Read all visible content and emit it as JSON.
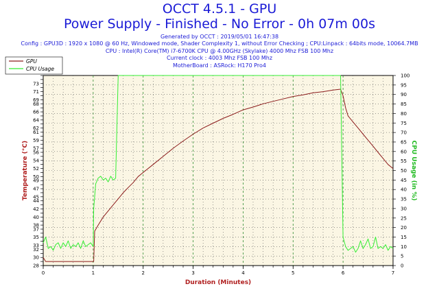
{
  "header": {
    "title": "OCCT 4.5.1 - GPU",
    "subtitle": "Power Supply - Finished - No Error - 0h 07m 00s",
    "generated": "Generated by OCCT : 2019/05/01 16:47:38",
    "config": "Config : GPU3D : 1920 x 1080 @ 60 Hz, Windowed mode, Shader Complexity 1, without Error Checking ; CPU:Linpack : 64bits mode, 10064.7MB",
    "cpu": "CPU : Intel(R) Core(TM) i7-6700K CPU @ 4.00GHz (Skylake) 4000 Mhz FSB 100 Mhz",
    "clock": "Current clock : 4003 Mhz FSB 100 Mhz",
    "motherboard": "MotherBoard : ASRock: H170 Pro4"
  },
  "colors": {
    "background": "#ffffff",
    "plot_bg": "#fbf6e4",
    "grid_major": "#2e8b2e",
    "grid_minor": "#555555",
    "gpu_line": "#8b1a1a",
    "cpu_line": "#33ee33",
    "title": "#1a1ad6"
  },
  "chart_data": {
    "type": "line",
    "xlabel": "Duration (Minutes)",
    "ylabel_left": "Temperature (°C)",
    "ylabel_right": "CPU Usage (in %)",
    "xlim": [
      0,
      7
    ],
    "ylim_left": [
      28,
      75
    ],
    "ylim_right": [
      0,
      100
    ],
    "x_ticks": [
      0,
      1,
      2,
      3,
      4,
      5,
      6,
      7
    ],
    "y_ticks_left": [
      28,
      29,
      30,
      31,
      32,
      33,
      34,
      35,
      36,
      37,
      38,
      39,
      40,
      41,
      42,
      43,
      44,
      45,
      46,
      47,
      48,
      49,
      50,
      51,
      52,
      53,
      54,
      55,
      56,
      57,
      58,
      59,
      60,
      61,
      62,
      63,
      64,
      65,
      66,
      67,
      68,
      69,
      70,
      71,
      72,
      73,
      74,
      75
    ],
    "y_tick_labels_left": [
      28,
      30,
      32,
      33,
      35,
      37,
      38,
      40,
      42,
      44,
      45,
      47,
      49,
      50,
      52,
      54,
      56,
      57,
      59,
      61,
      62,
      64,
      66,
      68,
      69,
      71,
      73
    ],
    "y_ticks_right": [
      0,
      5,
      10,
      15,
      20,
      25,
      30,
      35,
      40,
      45,
      50,
      55,
      60,
      65,
      70,
      75,
      80,
      85,
      90,
      95,
      100
    ],
    "grid": true,
    "legend_position": "top-left",
    "series": [
      {
        "name": "GPU",
        "axis": "left",
        "color": "#8b1a1a",
        "points": [
          [
            0,
            30
          ],
          [
            0.05,
            29
          ],
          [
            0.2,
            29
          ],
          [
            0.5,
            29
          ],
          [
            0.8,
            29
          ],
          [
            1.0,
            29
          ],
          [
            1.01,
            29
          ],
          [
            1.03,
            36.5
          ],
          [
            1.1,
            38
          ],
          [
            1.2,
            40
          ],
          [
            1.3,
            41.5
          ],
          [
            1.4,
            43
          ],
          [
            1.5,
            44.5
          ],
          [
            1.6,
            46
          ],
          [
            1.7,
            47.3
          ],
          [
            1.8,
            48.5
          ],
          [
            1.9,
            50
          ],
          [
            2.0,
            51
          ],
          [
            2.2,
            53
          ],
          [
            2.4,
            55
          ],
          [
            2.6,
            57
          ],
          [
            2.8,
            58.8
          ],
          [
            3.0,
            60.5
          ],
          [
            3.2,
            62
          ],
          [
            3.4,
            63.2
          ],
          [
            3.6,
            64.4
          ],
          [
            3.8,
            65.4
          ],
          [
            4.0,
            66.5
          ],
          [
            4.2,
            67.2
          ],
          [
            4.4,
            68
          ],
          [
            4.6,
            68.6
          ],
          [
            4.8,
            69.2
          ],
          [
            5.0,
            69.8
          ],
          [
            5.2,
            70.2
          ],
          [
            5.4,
            70.7
          ],
          [
            5.6,
            71
          ],
          [
            5.8,
            71.4
          ],
          [
            5.95,
            71.6
          ],
          [
            6.0,
            70
          ],
          [
            6.05,
            67
          ],
          [
            6.1,
            65
          ],
          [
            6.2,
            63.5
          ],
          [
            6.3,
            62
          ],
          [
            6.4,
            60.5
          ],
          [
            6.5,
            59
          ],
          [
            6.6,
            57.5
          ],
          [
            6.7,
            56
          ],
          [
            6.8,
            54.5
          ],
          [
            6.9,
            53
          ],
          [
            7.0,
            52
          ]
        ]
      },
      {
        "name": "CPU Usage",
        "axis": "right",
        "color": "#33ee33",
        "points": [
          [
            0,
            12
          ],
          [
            0.05,
            15
          ],
          [
            0.1,
            9
          ],
          [
            0.15,
            10
          ],
          [
            0.2,
            8
          ],
          [
            0.25,
            11
          ],
          [
            0.3,
            12
          ],
          [
            0.35,
            9
          ],
          [
            0.4,
            12
          ],
          [
            0.45,
            10
          ],
          [
            0.5,
            13
          ],
          [
            0.55,
            9
          ],
          [
            0.6,
            11
          ],
          [
            0.65,
            10
          ],
          [
            0.7,
            12
          ],
          [
            0.75,
            9
          ],
          [
            0.8,
            13
          ],
          [
            0.85,
            10
          ],
          [
            0.9,
            11
          ],
          [
            0.95,
            12
          ],
          [
            1.0,
            10
          ],
          [
            1.01,
            30
          ],
          [
            1.05,
            43
          ],
          [
            1.1,
            46
          ],
          [
            1.15,
            47
          ],
          [
            1.2,
            45
          ],
          [
            1.25,
            46
          ],
          [
            1.3,
            44
          ],
          [
            1.35,
            47
          ],
          [
            1.4,
            45
          ],
          [
            1.45,
            46
          ],
          [
            1.5,
            100
          ],
          [
            2.0,
            100
          ],
          [
            3.0,
            100
          ],
          [
            4.0,
            100
          ],
          [
            5.0,
            100
          ],
          [
            5.9,
            100
          ],
          [
            5.95,
            100
          ],
          [
            6.0,
            15
          ],
          [
            6.05,
            10
          ],
          [
            6.1,
            8
          ],
          [
            6.15,
            9
          ],
          [
            6.2,
            10
          ],
          [
            6.25,
            7
          ],
          [
            6.3,
            9
          ],
          [
            6.35,
            13
          ],
          [
            6.4,
            9
          ],
          [
            6.45,
            11
          ],
          [
            6.5,
            14
          ],
          [
            6.55,
            9
          ],
          [
            6.6,
            10
          ],
          [
            6.65,
            15
          ],
          [
            6.7,
            9
          ],
          [
            6.75,
            10
          ],
          [
            6.8,
            9
          ],
          [
            6.85,
            11
          ],
          [
            6.9,
            8
          ],
          [
            6.95,
            10
          ],
          [
            7.0,
            9
          ]
        ]
      }
    ]
  }
}
